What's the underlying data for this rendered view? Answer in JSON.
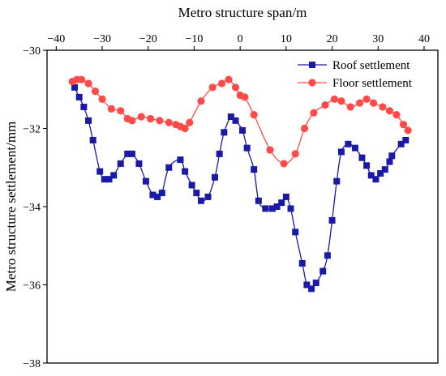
{
  "chart_data": {
    "type": "line",
    "title": "",
    "xlabel": "Metro structure span/m",
    "ylabel": "Metro structure settlement/mm",
    "xlim": [
      -42,
      43
    ],
    "ylim": [
      -38,
      -30
    ],
    "x_ticks": [
      -40,
      -30,
      -20,
      -10,
      0,
      10,
      20,
      30,
      40
    ],
    "x_tick_labels": [
      "−40",
      "−30",
      "−20",
      "−10",
      "0",
      "10",
      "20",
      "30",
      "40"
    ],
    "y_ticks": [
      -30,
      -32,
      -34,
      -36,
      -38
    ],
    "y_tick_labels": [
      "−30",
      "−32",
      "−34",
      "−36",
      "−38"
    ],
    "x_axis_position": "top",
    "grid": false,
    "legend_position": "top-right",
    "series": [
      {
        "name": "Roof settlement",
        "color": "#1a1aa6",
        "marker": "square",
        "x": [
          -36,
          -35,
          -34,
          -33,
          -32,
          -30.5,
          -29.5,
          -28.5,
          -27.5,
          -26,
          -24.5,
          -23.5,
          -22,
          -20.5,
          -19,
          -18,
          -17,
          -15.5,
          -13,
          -12,
          -10.5,
          -9.5,
          -8.5,
          -7,
          -5.5,
          -4.5,
          -3.5,
          -2,
          -1,
          0.5,
          1.5,
          3,
          4,
          5.5,
          7,
          8,
          9,
          10,
          11,
          12,
          13.5,
          14.5,
          15.5,
          16.5,
          18,
          19,
          20,
          21,
          22,
          23.5,
          25,
          26.5,
          27.5,
          28.5,
          29.5,
          30.5,
          31.5,
          32.5,
          33,
          35,
          36
        ],
        "y": [
          -30.95,
          -31.2,
          -31.45,
          -31.8,
          -32.3,
          -33.1,
          -33.3,
          -33.3,
          -33.2,
          -32.9,
          -32.65,
          -32.65,
          -32.9,
          -33.35,
          -33.7,
          -33.75,
          -33.65,
          -33.0,
          -32.8,
          -33.1,
          -33.45,
          -33.65,
          -33.85,
          -33.75,
          -33.25,
          -32.65,
          -32.1,
          -31.7,
          -31.8,
          -32.05,
          -32.5,
          -33.05,
          -33.85,
          -34.05,
          -34.05,
          -34.0,
          -33.9,
          -33.75,
          -34.05,
          -34.65,
          -35.45,
          -36.0,
          -36.1,
          -35.95,
          -35.65,
          -35.25,
          -34.35,
          -33.35,
          -32.6,
          -32.4,
          -32.5,
          -32.75,
          -32.95,
          -33.2,
          -33.3,
          -33.15,
          -33.05,
          -32.85,
          -32.7,
          -32.4,
          -32.3
        ]
      },
      {
        "name": "Floor settlement",
        "color": "#ff4a4a",
        "marker": "circle",
        "x": [
          -36.5,
          -35.5,
          -34.5,
          -33,
          -31.5,
          -30,
          -28,
          -26,
          -24.5,
          -23.5,
          -21.5,
          -19.5,
          -17.5,
          -15.5,
          -14,
          -13,
          -12,
          -11,
          -8.5,
          -6,
          -4,
          -2.5,
          -1,
          0,
          1,
          3,
          6.5,
          9.5,
          12,
          14,
          16,
          18.5,
          20.5,
          22,
          24,
          26,
          27.5,
          29,
          31,
          32.5,
          34,
          35.5,
          36.5
        ],
        "y": [
          -30.8,
          -30.75,
          -30.75,
          -30.85,
          -31.05,
          -31.25,
          -31.5,
          -31.55,
          -31.75,
          -31.8,
          -31.7,
          -31.75,
          -31.8,
          -31.85,
          -31.9,
          -31.95,
          -32.0,
          -31.85,
          -31.3,
          -30.95,
          -30.85,
          -30.75,
          -30.95,
          -31.15,
          -31.2,
          -31.65,
          -32.55,
          -32.9,
          -32.65,
          -32.0,
          -31.6,
          -31.4,
          -31.25,
          -31.3,
          -31.45,
          -31.35,
          -31.25,
          -31.35,
          -31.45,
          -31.55,
          -31.65,
          -31.9,
          -32.05
        ]
      }
    ]
  }
}
